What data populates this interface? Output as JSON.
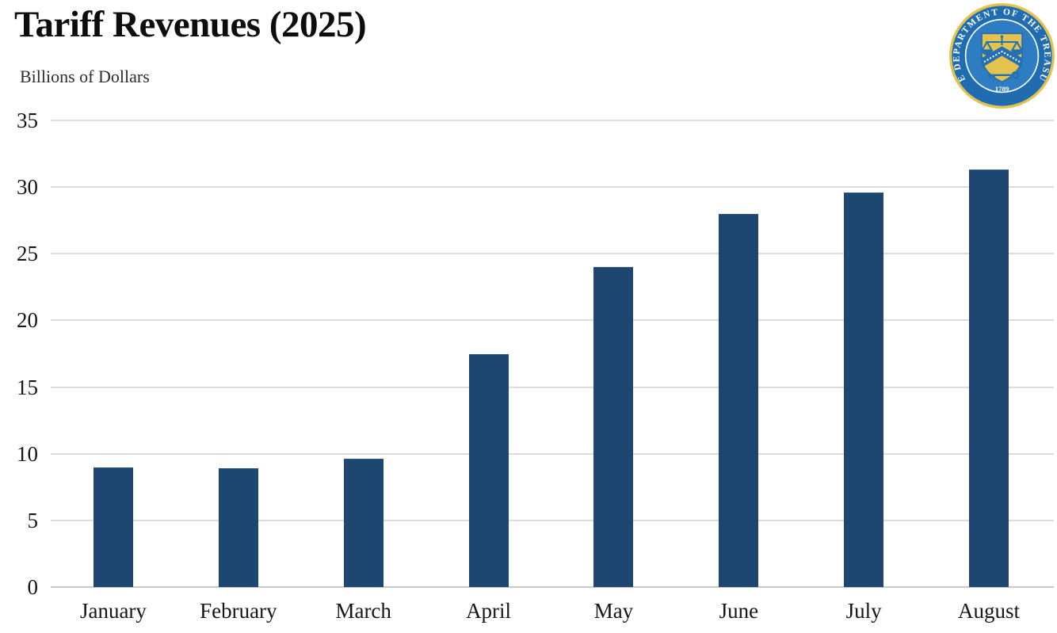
{
  "header": {
    "title": "Tariff Revenues (2025)",
    "subtitle": "Billions of Dollars"
  },
  "seal": {
    "ring_text": "THE DEPARTMENT OF THE TREASURY",
    "year": "1789",
    "colors": {
      "ring_blue": "#1f6cb0",
      "field_blue": "#2e7cc2",
      "gold": "#e3c24d",
      "emblem_blue": "#2470b3",
      "text_white": "#ffffff"
    }
  },
  "chart_data": {
    "type": "bar",
    "title": "Tariff Revenues (2025)",
    "ylabel": "Billions of Dollars",
    "xlabel": "",
    "categories": [
      "January",
      "February",
      "March",
      "April",
      "May",
      "June",
      "July",
      "August"
    ],
    "values": [
      9.0,
      8.9,
      9.6,
      17.5,
      24.0,
      28.0,
      29.6,
      31.3
    ],
    "ylim": [
      0,
      35
    ],
    "yticks": [
      0,
      5,
      10,
      15,
      20,
      25,
      30,
      35
    ],
    "grid": true,
    "legend_position": "none",
    "bar_color": "#1d4670",
    "gridline_color": "#dcdcdc",
    "axis_color": "#c9c9c9"
  }
}
